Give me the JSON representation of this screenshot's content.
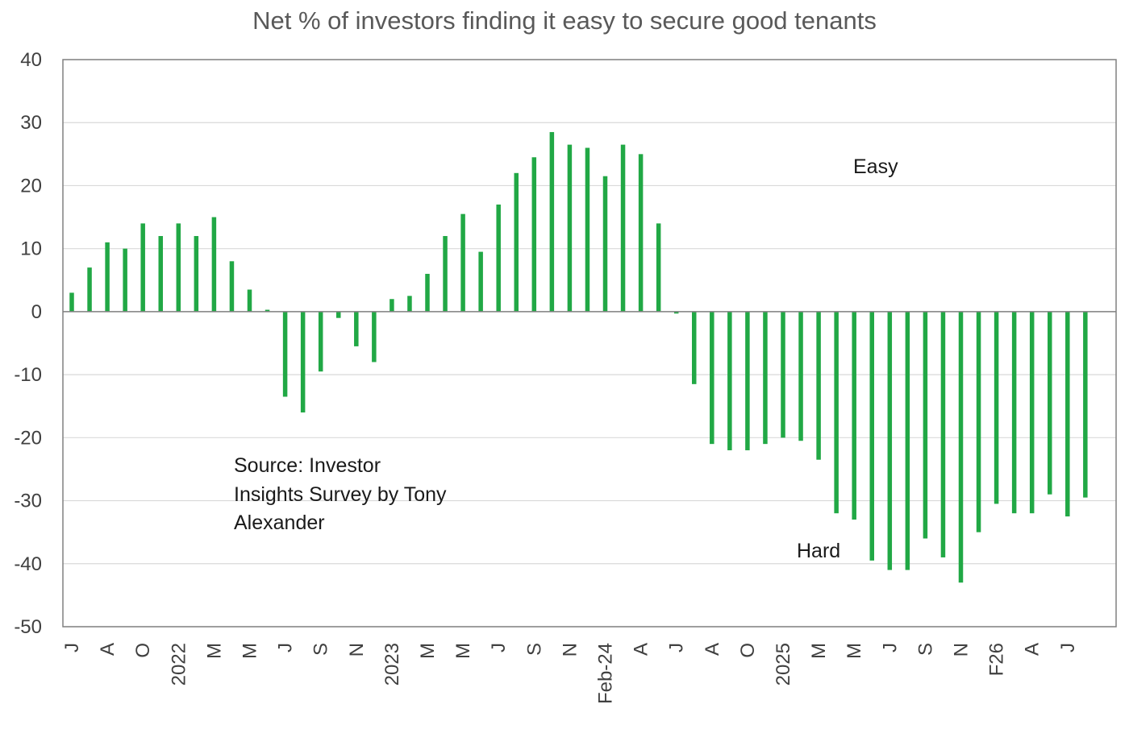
{
  "chart_data": {
    "type": "bar",
    "title": "Net % of investors finding it easy to secure good tenants",
    "xlabel": "",
    "ylabel": "",
    "ylim": [
      -50,
      40
    ],
    "yticks": [
      40,
      30,
      20,
      10,
      0,
      -10,
      -20,
      -30,
      -40,
      -50
    ],
    "grid": true,
    "bar_color": "#21a845",
    "x_tick_labels": [
      "J",
      "A",
      "O",
      "2022",
      "M",
      "M",
      "J",
      "S",
      "N",
      "2023",
      "M",
      "M",
      "J",
      "S",
      "N",
      "Feb-24",
      "A",
      "J",
      "A",
      "O",
      "2025",
      "M",
      "M",
      "J",
      "S",
      "N",
      "F26",
      "A",
      "J"
    ],
    "values": [
      3,
      7,
      11,
      10,
      14,
      12,
      14,
      12,
      15,
      8,
      3.5,
      0.3,
      -13.5,
      -16,
      -9.5,
      -1,
      -5.5,
      -8,
      2,
      2.5,
      6,
      12,
      15.5,
      9.5,
      17,
      22,
      24.5,
      28.5,
      26.5,
      26,
      21.5,
      26.5,
      25,
      14,
      -0.3,
      -11.5,
      -21,
      -22,
      -22,
      -21,
      -20,
      -20.5,
      -23.5,
      -32,
      -33,
      -39.5,
      -41,
      -41,
      -36,
      -39,
      -43,
      -35,
      -30.5,
      -32,
      -32,
      -29,
      -32.5,
      -29.5
    ],
    "annotations": {
      "easy": "Easy",
      "hard": "Hard",
      "source_lines": [
        "Source: Investor",
        "Insights Survey by Tony",
        "Alexander"
      ]
    }
  }
}
